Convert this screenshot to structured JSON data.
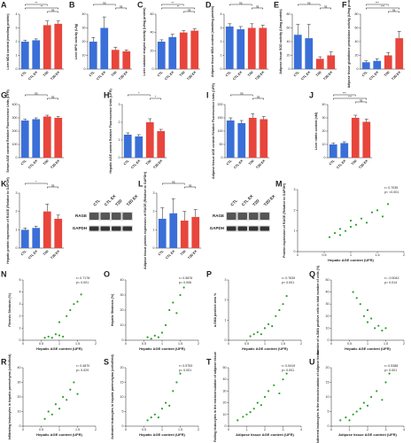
{
  "chart_data": [
    {
      "type": "bar",
      "panel": "A",
      "ylabel": "Liver MDA content (nmol/mg protein)",
      "categories": [
        "CTL",
        "CTL EX",
        "T2D",
        "T2D EX"
      ],
      "colors": [
        "#3a6fd8",
        "#3a6fd8",
        "#e8453c",
        "#e8453c"
      ],
      "values": [
        2.0,
        2.1,
        3.2,
        3.3
      ],
      "errors": [
        0.1,
        0.1,
        0.3,
        0.2
      ],
      "ylim": [
        0,
        4
      ],
      "yticks": [
        0,
        1,
        2,
        3,
        4
      ],
      "significance": [
        {
          "label": "**",
          "from": 0,
          "to": 2
        },
        {
          "label": "**",
          "from": 0,
          "to": 3
        },
        {
          "label": "ns",
          "from": 2,
          "to": 3
        }
      ]
    },
    {
      "type": "bar",
      "panel": "B",
      "ylabel": "Liver MPO activity (U/g)",
      "categories": [
        "CTL",
        "CTL EX",
        "T2D",
        "T2D EX"
      ],
      "colors": [
        "#3a6fd8",
        "#3a6fd8",
        "#e8453c",
        "#e8453c"
      ],
      "values": [
        20,
        30,
        14,
        13
      ],
      "errors": [
        3,
        8,
        2,
        1
      ],
      "ylim": [
        0,
        40
      ],
      "yticks": [
        0,
        10,
        20,
        30,
        40
      ],
      "significance": [
        {
          "label": "ns",
          "from": 0,
          "to": 2
        },
        {
          "label": "ns",
          "from": 2,
          "to": 3
        }
      ]
    },
    {
      "type": "bar",
      "panel": "C",
      "ylabel": "Liver catalase enzyme activity (U/mg protein)",
      "categories": [
        "CTL",
        "CTL EX",
        "T2D",
        "T2D EX"
      ],
      "colors": [
        "#3a6fd8",
        "#3a6fd8",
        "#e8453c",
        "#e8453c"
      ],
      "values": [
        30,
        35,
        40,
        42
      ],
      "errors": [
        2,
        3,
        2,
        2
      ],
      "ylim": [
        0,
        60
      ],
      "yticks": [
        0,
        20,
        40,
        60
      ],
      "significance": [
        {
          "label": "**",
          "from": 0,
          "to": 2
        },
        {
          "label": "**",
          "from": 0,
          "to": 3
        },
        {
          "label": "ns",
          "from": 2,
          "to": 3
        }
      ]
    },
    {
      "type": "bar",
      "panel": "D",
      "ylabel": "Adipose tissue MDA content (nmol/mg protein)",
      "categories": [
        "CTL",
        "CTL EX",
        "T2D",
        "T2D EX"
      ],
      "colors": [
        "#3a6fd8",
        "#3a6fd8",
        "#e8453c",
        "#e8453c"
      ],
      "values": [
        3.1,
        2.9,
        3.0,
        3.0
      ],
      "errors": [
        0.2,
        0.2,
        0.3,
        0.2
      ],
      "ylim": [
        0,
        4
      ],
      "yticks": [
        0,
        1,
        2,
        3,
        4
      ],
      "significance": [
        {
          "label": "ns",
          "from": 0,
          "to": 2
        },
        {
          "label": "ns",
          "from": 2,
          "to": 3
        }
      ]
    },
    {
      "type": "bar",
      "panel": "E",
      "ylabel": "Adipose tissue SOD activity (U/mg protein)",
      "categories": [
        "CTL",
        "CTL EX",
        "T2D",
        "T2D EX"
      ],
      "colors": [
        "#3a6fd8",
        "#3a6fd8",
        "#e8453c",
        "#e8453c"
      ],
      "values": [
        50,
        45,
        15,
        20
      ],
      "errors": [
        15,
        20,
        3,
        5
      ],
      "ylim": [
        0,
        80
      ],
      "yticks": [
        0,
        20,
        40,
        60,
        80
      ],
      "significance": [
        {
          "label": "ns",
          "from": 0,
          "to": 2
        },
        {
          "label": "ns",
          "from": 2,
          "to": 3
        }
      ]
    },
    {
      "type": "bar",
      "panel": "F",
      "ylabel": "Adipose tissue glutathione peroxidase activity (U/mg protein)",
      "categories": [
        "CTL",
        "CTL EX",
        "T2D",
        "T2D EX"
      ],
      "colors": [
        "#3a6fd8",
        "#3a6fd8",
        "#e8453c",
        "#e8453c"
      ],
      "values": [
        10,
        12,
        20,
        45
      ],
      "errors": [
        2,
        3,
        4,
        10
      ],
      "ylim": [
        0,
        80
      ],
      "yticks": [
        0,
        20,
        40,
        60,
        80
      ],
      "significance": [
        {
          "label": "***",
          "from": 0,
          "to": 2
        },
        {
          "label": "***",
          "from": 0,
          "to": 3
        },
        {
          "label": "ns",
          "from": 2,
          "to": 3
        }
      ]
    },
    {
      "type": "bar",
      "panel": "G",
      "ylabel": "Serum AGE content Relative Fluorescence Units (UFR)",
      "categories": [
        "CTL",
        "CTL EX",
        "T2D",
        "T2D EX"
      ],
      "colors": [
        "#3a6fd8",
        "#3a6fd8",
        "#e8453c",
        "#e8453c"
      ],
      "values": [
        280,
        290,
        310,
        300
      ],
      "errors": [
        10,
        10,
        10,
        10
      ],
      "ylim": [
        0,
        400
      ],
      "yticks": [
        0,
        100,
        200,
        300,
        400
      ],
      "significance": [
        {
          "label": "ns",
          "from": 0,
          "to": 2
        },
        {
          "label": "ns",
          "from": 2,
          "to": 3
        }
      ]
    },
    {
      "type": "bar",
      "panel": "H",
      "ylabel": "Hepatic AGE content Relative Fluorescence Units (UFR)",
      "categories": [
        "CTL",
        "CTL EX",
        "T2D",
        "T2D EX"
      ],
      "colors": [
        "#3a6fd8",
        "#3a6fd8",
        "#e8453c",
        "#e8453c"
      ],
      "values": [
        1.3,
        1.2,
        2.0,
        1.5
      ],
      "errors": [
        0.1,
        0.1,
        0.2,
        0.1
      ],
      "ylim": [
        0,
        3
      ],
      "yticks": [
        0,
        1,
        2,
        3
      ],
      "significance": [
        {
          "label": "*",
          "from": 0,
          "to": 2
        },
        {
          "label": "*",
          "from": 2,
          "to": 3
        }
      ]
    },
    {
      "type": "bar",
      "panel": "I",
      "ylabel": "Adipose tissue AGE content Relative Fluorescence Units (UFR)",
      "categories": [
        "CTL",
        "CTL EX",
        "T2D",
        "T2D EX"
      ],
      "colors": [
        "#3a6fd8",
        "#3a6fd8",
        "#e8453c",
        "#e8453c"
      ],
      "values": [
        140,
        130,
        150,
        145
      ],
      "errors": [
        10,
        10,
        15,
        10
      ],
      "ylim": [
        0,
        200
      ],
      "yticks": [
        0,
        50,
        100,
        150,
        200
      ],
      "significance": [
        {
          "label": "ns",
          "from": 0,
          "to": 2
        },
        {
          "label": "ns",
          "from": 2,
          "to": 3
        }
      ]
    },
    {
      "type": "bar",
      "panel": "J",
      "ylabel": "Liver nitrite content (nM)",
      "categories": [
        "CTL",
        "CTL EX",
        "T2D",
        "T2D EX"
      ],
      "colors": [
        "#3a6fd8",
        "#3a6fd8",
        "#e8453c",
        "#e8453c"
      ],
      "values": [
        10,
        11,
        30,
        27
      ],
      "errors": [
        1,
        1,
        2,
        2
      ],
      "ylim": [
        0,
        40
      ],
      "yticks": [
        0,
        10,
        20,
        30,
        40
      ],
      "significance": [
        {
          "label": "***",
          "from": 0,
          "to": 2
        },
        {
          "label": "***",
          "from": 0,
          "to": 3
        },
        {
          "label": "ns",
          "from": 2,
          "to": 3
        }
      ]
    },
    {
      "type": "bar",
      "panel": "K",
      "ylabel": "Hepatic protein expression of RAGE (Relative to GAPDH)",
      "categories": [
        "CTL",
        "CTL EX",
        "T2D",
        "T2D EX"
      ],
      "colors": [
        "#3a6fd8",
        "#3a6fd8",
        "#e8453c",
        "#e8453c"
      ],
      "values": [
        1.0,
        1.1,
        2.0,
        1.6
      ],
      "errors": [
        0.1,
        0.1,
        0.4,
        0.2
      ],
      "ylim": [
        0,
        3
      ],
      "yticks": [
        0,
        1,
        2,
        3
      ],
      "significance": [
        {
          "label": "*",
          "from": 0,
          "to": 2
        },
        {
          "label": "ns",
          "from": 2,
          "to": 3
        }
      ],
      "blot": {
        "lanes": [
          "CTL",
          "CTL EX",
          "T2D",
          "T2D EX"
        ],
        "rows": [
          "RAGE",
          "GAPDH"
        ]
      }
    },
    {
      "type": "bar",
      "panel": "L",
      "ylabel": "Adipose tissue protein expression of RAGE (Relative to GAPDH)",
      "categories": [
        "CTL",
        "CTL EX",
        "T2D",
        "T2D EX"
      ],
      "colors": [
        "#3a6fd8",
        "#3a6fd8",
        "#e8453c",
        "#e8453c"
      ],
      "values": [
        1.6,
        1.9,
        1.5,
        1.7
      ],
      "errors": [
        0.6,
        0.8,
        0.5,
        0.4
      ],
      "ylim": [
        0,
        3
      ],
      "yticks": [
        0,
        1,
        2,
        3
      ],
      "significance": [
        {
          "label": "ns",
          "from": 0,
          "to": 2
        },
        {
          "label": "ns",
          "from": 2,
          "to": 3
        }
      ],
      "blot": {
        "lanes": [
          "CTL",
          "CTL EX",
          "T2D",
          "T2D EX"
        ],
        "rows": [
          "RAGE",
          "GAPDH"
        ]
      }
    },
    {
      "type": "scatter",
      "panel": "M",
      "ylabel": "Protein expression of RAGE (Relative to GAPDH)",
      "xlabel": "Hepatic AGE content (UFR)",
      "r": "r= 0.7035",
      "p": "p< <0.001",
      "color": "#2ca02c",
      "x": [
        0.6,
        0.7,
        0.8,
        0.8,
        0.9,
        1.0,
        1.0,
        1.1,
        1.2,
        1.3,
        1.4,
        1.5,
        1.6,
        1.7
      ],
      "y": [
        0.7,
        0.9,
        0.8,
        1.1,
        1.0,
        1.2,
        1.5,
        1.3,
        1.6,
        1.4,
        1.9,
        2.0,
        1.7,
        2.3
      ],
      "xlim": [
        0,
        2
      ],
      "xticks": [
        0,
        0.5,
        1,
        1.5,
        2
      ],
      "ylim": [
        0,
        3
      ],
      "yticks": [
        0,
        1,
        2,
        3
      ]
    },
    {
      "type": "scatter",
      "panel": "N",
      "ylabel": "Fibrosis Steatosis (%)",
      "xlabel": "Hepatic AGE content (UFR)",
      "r": "r= 0.7178",
      "p": "p< 0.001",
      "color": "#2ca02c",
      "x": [
        0.6,
        0.7,
        0.8,
        0.9,
        1.0,
        1.0,
        1.1,
        1.2,
        1.3,
        1.4,
        1.5,
        1.6
      ],
      "y": [
        0.2,
        0.3,
        0.2,
        0.5,
        0.4,
        1.5,
        0.3,
        2.0,
        2.5,
        3.0,
        3.2,
        3.8
      ],
      "xlim": [
        0,
        2
      ],
      "xticks": [
        0,
        0.5,
        1,
        1.5,
        2
      ],
      "ylim": [
        0,
        5
      ],
      "yticks": [
        0,
        1,
        2,
        3,
        4,
        5
      ]
    },
    {
      "type": "scatter",
      "panel": "O",
      "ylabel": "Hepatic Steatosis (%)",
      "xlabel": "Hepatic AGE content (UFR)",
      "r": "r= 0.5876",
      "p": "p= 0.006",
      "color": "#2ca02c",
      "x": [
        0.6,
        0.7,
        0.8,
        0.9,
        1.0,
        1.1,
        1.2,
        1.3,
        1.4,
        1.5,
        1.6
      ],
      "y": [
        2,
        1,
        3,
        2,
        5,
        10,
        20,
        25,
        18,
        30,
        35
      ],
      "xlim": [
        0,
        2
      ],
      "xticks": [
        0,
        0.5,
        1,
        1.5,
        2
      ],
      "ylim": [
        0,
        40
      ],
      "yticks": [
        0,
        10,
        20,
        30,
        40
      ]
    },
    {
      "type": "scatter",
      "panel": "P",
      "ylabel": "α-SMA positive area %",
      "xlabel": "Hepatic AGE content (UFR)",
      "r": "r= 0.7639",
      "p": "p< 0.001",
      "color": "#2ca02c",
      "x": [
        0.6,
        0.7,
        0.8,
        0.9,
        1.0,
        1.1,
        1.2,
        1.3,
        1.4,
        1.5,
        1.6
      ],
      "y": [
        0.2,
        0.3,
        0.4,
        0.3,
        0.6,
        0.8,
        0.7,
        1.2,
        1.5,
        1.8,
        2.2
      ],
      "xlim": [
        0,
        2
      ],
      "xticks": [
        0,
        0.5,
        1,
        1.5,
        2
      ],
      "ylim": [
        0,
        3
      ],
      "yticks": [
        0,
        1,
        2,
        3
      ]
    },
    {
      "type": "scatter",
      "panel": "Q",
      "ylabel": "Number of α-SMA positive cells in total number of cells (%)",
      "xlabel": "Hepatic AGE content (UFR)",
      "r": "r= -0.5042",
      "p": "p= 0.014",
      "color": "#2ca02c",
      "x": [
        0.6,
        0.7,
        0.8,
        0.9,
        1.0,
        1.0,
        1.1,
        1.2,
        1.3,
        1.4,
        1.5
      ],
      "y": [
        40,
        35,
        30,
        20,
        25,
        15,
        18,
        10,
        12,
        8,
        10
      ],
      "xlim": [
        0,
        2
      ],
      "xticks": [
        0,
        0.5,
        1,
        1.5,
        2
      ],
      "ylim": [
        0,
        50
      ],
      "yticks": [
        0,
        10,
        20,
        30,
        40,
        50
      ]
    },
    {
      "type": "scatter",
      "panel": "R",
      "ylabel": "Infiltrating leukocytes in hepatic parenchyma (cells/field)",
      "xlabel": "Hepatic AGE content (UFR)",
      "r": "r= 0.4870",
      "p": "p= 0.029",
      "color": "#2ca02c",
      "x": [
        0.6,
        0.7,
        0.8,
        0.9,
        1.0,
        1.1,
        1.2,
        1.3,
        1.4,
        1.5
      ],
      "y": [
        5,
        10,
        8,
        15,
        12,
        20,
        18,
        25,
        30,
        22
      ],
      "xlim": [
        0,
        2
      ],
      "xticks": [
        0,
        0.5,
        1,
        1.5,
        2
      ],
      "ylim": [
        0,
        40
      ],
      "yticks": [
        0,
        10,
        20,
        30,
        40
      ]
    },
    {
      "type": "scatter",
      "panel": "S",
      "ylabel": "Activated leukocytes in hepatic parenchyma (cells/field)",
      "xlabel": "Hepatic AGE content (UFR)",
      "r": "r= 0.5753",
      "p": "p= 0.001",
      "color": "#2ca02c",
      "x": [
        0.6,
        0.7,
        0.8,
        0.9,
        1.0,
        1.1,
        1.2,
        1.3,
        1.4,
        1.5
      ],
      "y": [
        2,
        3,
        4,
        3,
        6,
        8,
        7,
        12,
        15,
        18
      ],
      "xlim": [
        0,
        2
      ],
      "xticks": [
        0,
        0.5,
        1,
        1.5,
        2
      ],
      "ylim": [
        0,
        20
      ],
      "yticks": [
        0,
        5,
        10,
        15,
        20
      ]
    },
    {
      "type": "scatter",
      "panel": "T",
      "ylabel": "Rolling leukocytes in the microcirculation of adipose tissue",
      "xlabel": "Adipose tissue AGE content (UFR)",
      "r": "r= 0.5419",
      "p": "p< 0.001",
      "color": "#2ca02c",
      "x": [
        0.5,
        0.8,
        1.0,
        1.2,
        1.4,
        1.6,
        1.8,
        2.0,
        2.2,
        2.5,
        2.8,
        3.0,
        3.2
      ],
      "y": [
        5,
        8,
        10,
        12,
        15,
        20,
        18,
        25,
        30,
        35,
        28,
        40,
        45
      ],
      "xlim": [
        0,
        4
      ],
      "xticks": [
        0,
        1,
        2,
        3,
        4
      ],
      "ylim": [
        0,
        50
      ],
      "yticks": [
        0,
        10,
        20,
        30,
        40,
        50
      ]
    },
    {
      "type": "scatter",
      "panel": "U",
      "ylabel": "Adherent leukocytes in the microcirculation of adipose tissue",
      "xlabel": "Adipose tissue AGE content (UFR)",
      "r": "r= 0.5388",
      "p": "p< 0.001",
      "color": "#2ca02c",
      "x": [
        0.5,
        0.8,
        1.0,
        1.2,
        1.4,
        1.6,
        1.8,
        2.0,
        2.2,
        2.5,
        2.8,
        3.0,
        3.2
      ],
      "y": [
        2,
        3,
        2,
        4,
        5,
        6,
        8,
        7,
        10,
        12,
        9,
        15,
        18
      ],
      "xlim": [
        0,
        4
      ],
      "xticks": [
        0,
        1,
        2,
        3,
        4
      ],
      "ylim": [
        0,
        20
      ],
      "yticks": [
        0,
        5,
        10,
        15,
        20
      ]
    }
  ]
}
